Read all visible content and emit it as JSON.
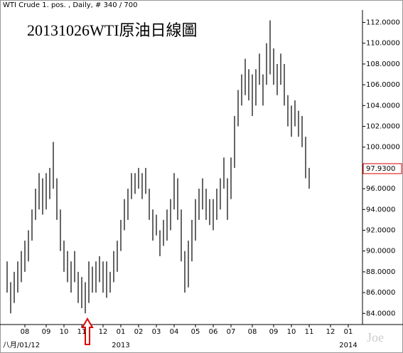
{
  "chart_data": {
    "type": "hilo",
    "header": "WTI Crude 1. pos. , Daily, # 340 / 700",
    "title": "20131026WTI原油日線圖",
    "watermark": "Joe",
    "color": "#000000",
    "categories": [
      null,
      null,
      null,
      null,
      null,
      "08",
      null,
      null,
      null,
      null,
      null,
      "09",
      null,
      null,
      null,
      null,
      "10",
      null,
      null,
      null,
      null,
      "11",
      null,
      null,
      null,
      null,
      null,
      "12",
      null,
      null,
      null,
      null,
      "01",
      null,
      null,
      null,
      null,
      "02",
      null,
      null,
      null,
      null,
      "03",
      null,
      null,
      null,
      null,
      "04",
      null,
      null,
      null,
      null,
      null,
      "05",
      null,
      null,
      null,
      null,
      "06",
      null,
      null,
      null,
      null,
      "07",
      null,
      null,
      null,
      null,
      null,
      "08",
      null,
      null,
      null,
      null,
      null,
      "09",
      null,
      null,
      null,
      null,
      "10",
      null,
      null,
      null,
      null,
      "11",
      null,
      null,
      null,
      null,
      null,
      "12",
      null,
      null,
      null,
      null,
      "01",
      null,
      null
    ],
    "sub_categories": [
      null,
      null,
      null,
      null,
      "八月/01/12",
      null,
      null,
      null,
      null,
      null,
      null,
      null,
      null,
      null,
      null,
      null,
      null,
      null,
      null,
      null,
      null,
      null,
      null,
      null,
      null,
      null,
      null,
      null,
      null,
      null,
      null,
      null,
      "2013",
      null,
      null,
      null,
      null,
      null,
      null,
      null,
      null,
      null,
      null,
      null,
      null,
      null,
      null,
      null,
      null,
      null,
      null,
      null,
      null,
      null,
      null,
      null,
      null,
      null,
      null,
      null,
      null,
      null,
      null,
      null,
      null,
      null,
      null,
      null,
      null,
      null,
      null,
      null,
      null,
      null,
      null,
      null,
      null,
      null,
      null,
      null,
      null,
      null,
      null,
      null,
      null,
      null,
      null,
      null,
      null,
      null,
      null,
      null,
      null,
      null,
      null,
      null,
      "2014",
      null,
      null
    ],
    "high": [
      89,
      87,
      88,
      89,
      90,
      91,
      92,
      94,
      96,
      97.5,
      97,
      97.5,
      98,
      100.5,
      97,
      94,
      91,
      90,
      89,
      90,
      88,
      87.5,
      87,
      89,
      88.5,
      89,
      89.5,
      89,
      89,
      88,
      90,
      91,
      93,
      95,
      96,
      97.5,
      97.5,
      98,
      97.5,
      98,
      96,
      94,
      93.5,
      92,
      93,
      94,
      95,
      97.5,
      97,
      94,
      90,
      91,
      93,
      95,
      96,
      97,
      96,
      95,
      95,
      96,
      97,
      99,
      97,
      99,
      103,
      105.5,
      107,
      108.5,
      107.5,
      107,
      107.5,
      109,
      107,
      110,
      112.2,
      109.5,
      108,
      109,
      108,
      105,
      104,
      104.5,
      103.5,
      103,
      101,
      98,
      null,
      null,
      null,
      null,
      null,
      null,
      null,
      null,
      null,
      null,
      null,
      null,
      null
    ],
    "low": [
      86,
      84,
      85,
      86,
      87,
      88,
      89,
      91,
      93,
      94,
      93.5,
      94,
      95,
      96,
      93,
      90,
      88,
      87,
      86,
      87,
      85,
      84.5,
      84,
      85,
      86,
      86,
      87,
      86,
      85.5,
      86,
      87,
      88,
      90,
      92,
      93,
      95,
      95.5,
      96,
      95,
      95.5,
      93,
      91,
      91.5,
      89.5,
      90.5,
      91,
      92,
      94,
      93,
      89,
      86,
      86.5,
      89,
      91,
      93,
      94,
      93,
      92.5,
      92,
      93,
      94,
      96,
      93,
      95,
      98,
      102,
      104,
      105,
      104.5,
      103,
      104,
      106,
      104,
      106,
      107,
      106,
      105,
      106,
      104,
      102,
      101,
      102,
      101,
      100,
      97,
      96,
      null,
      null,
      null,
      null,
      null,
      null,
      null,
      null,
      null,
      null,
      null,
      null,
      null
    ],
    "last_price": {
      "value": 97.93,
      "label": "97.9300"
    },
    "ylim": [
      83.2,
      113.2
    ],
    "yticks": [
      {
        "value": 84,
        "label": "84.0000"
      },
      {
        "value": 86,
        "label": "86.0000"
      },
      {
        "value": 88,
        "label": "88.0000"
      },
      {
        "value": 90,
        "label": "90.0000"
      },
      {
        "value": 92,
        "label": "92.0000"
      },
      {
        "value": 94,
        "label": "94.0000"
      },
      {
        "value": 96,
        "label": "96.0000"
      },
      {
        "value": 98,
        "label": "98.0000"
      },
      {
        "value": 100,
        "label": "100.0000"
      },
      {
        "value": 102,
        "label": "102.0000"
      },
      {
        "value": 104,
        "label": "104.0000"
      },
      {
        "value": 106,
        "label": "106.0000"
      },
      {
        "value": 108,
        "label": "108.0000"
      },
      {
        "value": 110,
        "label": "110.0000"
      },
      {
        "value": 112,
        "label": "112.0000"
      }
    ]
  }
}
